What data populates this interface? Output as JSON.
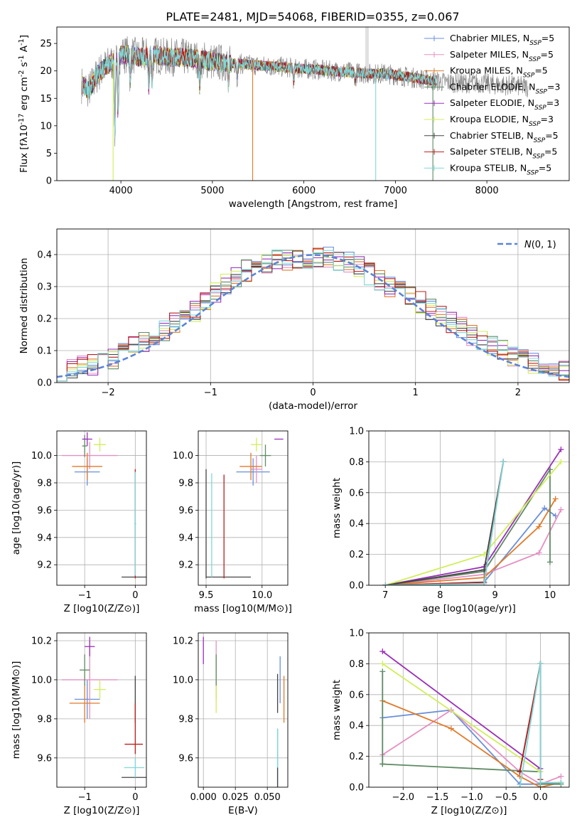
{
  "figure": {
    "title": "PLATE=2481, MJD=54068, FIBERID=0355, z=0.067"
  },
  "colors": {
    "chabrier_miles": "#6a8fd8",
    "salpeter_miles": "#e58fc2",
    "kroupa_miles": "#e07a2a",
    "chabrier_elodie": "#5f8a64",
    "salpeter_elodie": "#9b30b8",
    "kroupa_elodie": "#d0ee5a",
    "chabrier_stelib": "#444444",
    "salpeter_stelib": "#b8201e",
    "kroupa_stelib": "#7fd8d8",
    "normal": "#5b84d6",
    "grid": "#b0b0b0"
  },
  "chart_data": [
    {
      "id": "spectrum",
      "type": "line",
      "xlabel": "wavelength [Angstrom, rest frame]",
      "ylabel": "Flux [f_λ10^-17 erg cm^-2 s^-1 A^-1]",
      "xlim": [
        3300,
        8900
      ],
      "ylim": [
        0,
        28
      ],
      "xticks": [
        4000,
        5000,
        6000,
        7000,
        8000
      ],
      "yticks": [
        0,
        5,
        10,
        15,
        20,
        25
      ],
      "grid": false,
      "legend_position": "top-right",
      "legend": [
        {
          "model": "Chabrier MILES",
          "sub": "SSP",
          "n": "5",
          "color": "#6a8fd8"
        },
        {
          "model": "Salpeter MILES",
          "sub": "SSP",
          "n": "5",
          "color": "#e58fc2"
        },
        {
          "model": "Kroupa MILES",
          "sub": "SSP",
          "n": "5",
          "color": "#e07a2a"
        },
        {
          "model": "Chabrier ELODIE",
          "sub": "SSP",
          "n": "3",
          "color": "#5f8a64"
        },
        {
          "model": "Salpeter ELODIE",
          "sub": "SSP",
          "n": "3",
          "color": "#9b30b8"
        },
        {
          "model": "Kroupa ELODIE",
          "sub": "SSP",
          "n": "3",
          "color": "#d0ee5a"
        },
        {
          "model": "Chabrier STELIB",
          "sub": "SSP",
          "n": "5",
          "color": "#444444"
        },
        {
          "model": "Salpeter STELIB",
          "sub": "SSP",
          "n": "5",
          "color": "#b8201e"
        },
        {
          "model": "Kroupa STELIB",
          "sub": "SSP",
          "n": "5",
          "color": "#7fd8d8"
        }
      ],
      "continuum": {
        "x": [
          3570,
          3650,
          3750,
          3850,
          3950,
          4000,
          4100,
          4200,
          4350,
          4500,
          4700,
          4900,
          5100,
          5300,
          5500,
          5700,
          5900,
          6100,
          6300,
          6500,
          6700,
          6900,
          7100,
          7300,
          7500,
          7700,
          7900,
          8100,
          8300,
          8450
        ],
        "y": [
          17.5,
          16.5,
          19.5,
          21.0,
          22.0,
          23.0,
          23.0,
          22.5,
          23.0,
          22.5,
          22.5,
          22.0,
          21.5,
          21.3,
          21.0,
          20.8,
          20.5,
          20.3,
          20.0,
          19.8,
          19.5,
          19.5,
          19.0,
          18.5,
          18.0,
          17.8,
          17.8,
          17.5,
          17.3,
          17.0
        ]
      },
      "absorption_lines": [
        {
          "x": 3934,
          "depth": 0.6
        },
        {
          "x": 3969,
          "depth": 0.5
        },
        {
          "x": 4102,
          "depth": 0.2
        },
        {
          "x": 4305,
          "depth": 0.25
        },
        {
          "x": 4341,
          "depth": 0.2
        },
        {
          "x": 4861,
          "depth": 0.2
        },
        {
          "x": 5175,
          "depth": 0.18
        },
        {
          "x": 5270,
          "depth": 0.12
        },
        {
          "x": 5890,
          "depth": 0.12
        },
        {
          "x": 6563,
          "depth": 0.08
        }
      ],
      "spikes": [
        {
          "x": 3915,
          "y": 0
        },
        {
          "x": 5440,
          "y": 0
        },
        {
          "x": 6785,
          "y": 0
        },
        {
          "x": 7410,
          "y": 0
        },
        {
          "x": 6680,
          "y": 28
        },
        {
          "x": 6700,
          "y": 28
        }
      ]
    },
    {
      "id": "residuals",
      "type": "histogram",
      "xlabel": "(data-model)/error",
      "ylabel": "Normed distribution",
      "xlim": [
        -2.5,
        2.5
      ],
      "ylim": [
        0,
        0.48
      ],
      "xticks": [
        -2,
        -1,
        0,
        1,
        2
      ],
      "yticks": [
        0.0,
        0.1,
        0.2,
        0.3,
        0.4
      ],
      "grid": true,
      "legend_position": "top-right",
      "legend_label": "N(0,1)",
      "bins": [
        -2.5,
        -2.4,
        -2.3,
        -2.2,
        -2.1,
        -2.0,
        -1.9,
        -1.8,
        -1.7,
        -1.6,
        -1.5,
        -1.4,
        -1.3,
        -1.2,
        -1.1,
        -1.0,
        -0.9,
        -0.8,
        -0.7,
        -0.6,
        -0.5,
        -0.4,
        -0.3,
        -0.2,
        -0.1,
        0.0,
        0.1,
        0.2,
        0.3,
        0.4,
        0.5,
        0.6,
        0.7,
        0.8,
        0.9,
        1.0,
        1.1,
        1.2,
        1.3,
        1.4,
        1.5,
        1.6,
        1.7,
        1.8,
        1.9,
        2.0,
        2.1,
        2.2,
        2.3,
        2.4,
        2.5
      ],
      "envelope_mean": [
        0.04,
        0.045,
        0.05,
        0.055,
        0.06,
        0.075,
        0.09,
        0.11,
        0.125,
        0.145,
        0.165,
        0.185,
        0.2,
        0.225,
        0.255,
        0.28,
        0.31,
        0.33,
        0.35,
        0.36,
        0.375,
        0.38,
        0.385,
        0.39,
        0.39,
        0.39,
        0.39,
        0.385,
        0.375,
        0.36,
        0.34,
        0.32,
        0.3,
        0.285,
        0.27,
        0.25,
        0.23,
        0.21,
        0.19,
        0.17,
        0.15,
        0.13,
        0.115,
        0.1,
        0.085,
        0.07,
        0.06,
        0.05,
        0.045,
        0.04
      ],
      "normal": {
        "mu": 0,
        "sigma": 1
      },
      "series_colors": [
        "#6a8fd8",
        "#e58fc2",
        "#e07a2a",
        "#5f8a64",
        "#9b30b8",
        "#d0ee5a",
        "#444444",
        "#b8201e",
        "#7fd8d8"
      ]
    },
    {
      "id": "z-age",
      "type": "errorbar",
      "xlabel": "Z [log10(Z/Z⊙)]",
      "ylabel": "age [log10(age/yr)]",
      "xlim": [
        -1.55,
        0.22
      ],
      "ylim": [
        9.05,
        10.18
      ],
      "xticks": [
        -1,
        0
      ],
      "yticks": [
        9.2,
        9.4,
        9.6,
        9.8,
        10.0
      ],
      "grid": true,
      "points": [
        {
          "x": -0.95,
          "xerr": 0.25,
          "y": 9.88,
          "yerr": 0.1,
          "c": "#6a8fd8"
        },
        {
          "x": -0.9,
          "xerr": 0.55,
          "y": 10.0,
          "yerr": 0.1,
          "c": "#e58fc2"
        },
        {
          "x": -0.95,
          "xerr": 0.3,
          "y": 9.92,
          "yerr": 0.1,
          "c": "#e07a2a"
        },
        {
          "x": -1.0,
          "xerr": 0.05,
          "y": 10.07,
          "yerr": 0.08,
          "c": "#5f8a64"
        },
        {
          "x": -0.95,
          "xerr": 0.1,
          "y": 10.12,
          "yerr": 0.05,
          "c": "#9b30b8"
        },
        {
          "x": -0.7,
          "xerr": 0.12,
          "y": 10.08,
          "yerr": 0.05,
          "c": "#d0ee5a"
        },
        {
          "x": -0.02,
          "xerr": 0.25,
          "y": 9.11,
          "yerr": 0.0,
          "c": "#444444"
        },
        {
          "x": 0.0,
          "xerr": 0.0,
          "y": 9.5,
          "yerr": 0.4,
          "c": "#b8201e"
        },
        {
          "x": 0.0,
          "xerr": 0.02,
          "y": 9.5,
          "yerr": 0.38,
          "c": "#7fd8d8"
        }
      ]
    },
    {
      "id": "mass-age",
      "type": "errorbar",
      "xlabel": "mass [log10(M/M⊙)]",
      "ylabel": "",
      "xlim": [
        9.43,
        10.23
      ],
      "ylim": [
        9.05,
        10.18
      ],
      "xticks": [
        9.5,
        10.0
      ],
      "yticks": [
        9.2,
        9.4,
        9.6,
        9.8,
        10.0
      ],
      "grid": true,
      "points": [
        {
          "x": 9.92,
          "xerr": 0.15,
          "y": 9.88,
          "yerr": 0.1,
          "c": "#6a8fd8"
        },
        {
          "x": 9.95,
          "xerr": 0.05,
          "y": 9.9,
          "yerr": 0.1,
          "c": "#e58fc2"
        },
        {
          "x": 9.9,
          "xerr": 0.1,
          "y": 9.92,
          "yerr": 0.1,
          "c": "#e07a2a"
        },
        {
          "x": 10.03,
          "xerr": 0.05,
          "y": 10.0,
          "yerr": 0.08,
          "c": "#5f8a64"
        },
        {
          "x": 10.15,
          "xerr": 0.04,
          "y": 10.12,
          "yerr": 0.0,
          "c": "#9b30b8"
        },
        {
          "x": 9.95,
          "xerr": 0.05,
          "y": 10.08,
          "yerr": 0.05,
          "c": "#d0ee5a"
        },
        {
          "x": 9.7,
          "xerr": 0.2,
          "y": 9.11,
          "yerr": 0.0,
          "c": "#444444"
        },
        {
          "x": 9.5,
          "xerr": 0.0,
          "y": 9.5,
          "yerr": 0.4,
          "c": "#444444"
        },
        {
          "x": 9.66,
          "xerr": 0.0,
          "y": 9.48,
          "yerr": 0.38,
          "c": "#b8201e"
        },
        {
          "x": 9.55,
          "xerr": 0.0,
          "y": 9.49,
          "yerr": 0.38,
          "c": "#7fd8d8"
        }
      ]
    },
    {
      "id": "age-weight",
      "type": "line",
      "xlabel": "age [log10(age/yr)]",
      "ylabel": "mass weight",
      "xlim": [
        6.7,
        10.35
      ],
      "ylim": [
        0,
        1.0
      ],
      "xticks": [
        7,
        8,
        9,
        10
      ],
      "yticks": [
        0.0,
        0.2,
        0.4,
        0.6,
        0.8,
        1.0
      ],
      "grid": true,
      "series": [
        {
          "c": "#6a8fd8",
          "x": [
            7.0,
            8.8,
            9.9,
            10.1
          ],
          "y": [
            0.0,
            0.02,
            0.5,
            0.45
          ]
        },
        {
          "c": "#e58fc2",
          "x": [
            7.0,
            8.8,
            9.8,
            10.2
          ],
          "y": [
            0.0,
            0.07,
            0.21,
            0.49
          ]
        },
        {
          "c": "#e07a2a",
          "x": [
            7.0,
            8.8,
            9.8,
            10.1
          ],
          "y": [
            0.0,
            0.05,
            0.38,
            0.56
          ]
        },
        {
          "c": "#5f8a64",
          "x": [
            7.0,
            8.8,
            10.0,
            10.0
          ],
          "y": [
            0.0,
            0.09,
            0.75,
            0.15
          ]
        },
        {
          "c": "#9b30b8",
          "x": [
            7.0,
            8.8,
            10.2
          ],
          "y": [
            0.0,
            0.12,
            0.88
          ]
        },
        {
          "c": "#d0ee5a",
          "x": [
            7.0,
            8.8,
            10.2
          ],
          "y": [
            0.0,
            0.2,
            0.8
          ]
        },
        {
          "c": "#444444",
          "x": [
            7.0,
            8.8,
            9.15
          ],
          "y": [
            0.0,
            0.1,
            0.8
          ]
        },
        {
          "c": "#b8201e",
          "x": [
            7.0,
            8.8,
            9.15
          ],
          "y": [
            0.0,
            0.02,
            0.8
          ]
        },
        {
          "c": "#7fd8d8",
          "x": [
            7.0,
            8.8,
            9.15
          ],
          "y": [
            0.0,
            0.01,
            0.8
          ]
        }
      ]
    },
    {
      "id": "z-mass",
      "type": "errorbar",
      "xlabel": "Z [log10(Z/Z⊙)]",
      "ylabel": "mass [log10(M/M⊙)]",
      "xlim": [
        -1.55,
        0.22
      ],
      "ylim": [
        9.45,
        10.24
      ],
      "xticks": [
        -1,
        0
      ],
      "yticks": [
        9.6,
        9.8,
        10.0,
        10.2
      ],
      "grid": true,
      "points": [
        {
          "x": -0.95,
          "xerr": 0.25,
          "y": 9.9,
          "yerr": 0.1,
          "c": "#6a8fd8"
        },
        {
          "x": -0.9,
          "xerr": 0.55,
          "y": 10.0,
          "yerr": 0.2,
          "c": "#e58fc2"
        },
        {
          "x": -1.0,
          "xerr": 0.3,
          "y": 9.88,
          "yerr": 0.1,
          "c": "#e07a2a"
        },
        {
          "x": -1.0,
          "xerr": 0.1,
          "y": 10.05,
          "yerr": 0.08,
          "c": "#5f8a64"
        },
        {
          "x": -0.9,
          "xerr": 0.1,
          "y": 10.17,
          "yerr": 0.05,
          "c": "#9b30b8"
        },
        {
          "x": -0.7,
          "xerr": 0.12,
          "y": 9.95,
          "yerr": 0.05,
          "c": "#d0ee5a"
        },
        {
          "x": -0.02,
          "xerr": 0.25,
          "y": 9.5,
          "yerr": 0.0,
          "c": "#444444"
        },
        {
          "x": 0.0,
          "xerr": 0.0,
          "y": 9.9,
          "yerr": 0.12,
          "c": "#444444"
        },
        {
          "x": -0.03,
          "xerr": 0.18,
          "y": 9.67,
          "yerr": 0.0,
          "c": "#b8201e"
        },
        {
          "x": 0.0,
          "xerr": 0.0,
          "y": 9.75,
          "yerr": 0.13,
          "c": "#b8201e"
        },
        {
          "x": -0.02,
          "xerr": 0.2,
          "y": 9.55,
          "yerr": 0.0,
          "c": "#7fd8d8"
        },
        {
          "x": 0.0,
          "xerr": 0.0,
          "y": 9.55,
          "yerr": 0.05,
          "c": "#7fd8d8"
        }
      ]
    },
    {
      "id": "ebv-mass",
      "type": "errorbar",
      "xlabel": "E(B-V)",
      "ylabel": "",
      "xlim": [
        -0.004,
        0.066
      ],
      "ylim": [
        9.45,
        10.24
      ],
      "xticks": [
        0.0,
        0.025,
        0.05
      ],
      "yticks": [
        9.6,
        9.8,
        10.0,
        10.2
      ],
      "grid": true,
      "points": [
        {
          "x": 0.0,
          "xerr": 0.0,
          "y": 10.15,
          "yerr": 0.07,
          "c": "#9b30b8"
        },
        {
          "x": 0.01,
          "xerr": 0.0,
          "y": 10.05,
          "yerr": 0.15,
          "c": "#e58fc2"
        },
        {
          "x": 0.01,
          "xerr": 0.0,
          "y": 9.93,
          "yerr": 0.1,
          "c": "#d0ee5a"
        },
        {
          "x": 0.01,
          "xerr": 0.0,
          "y": 10.05,
          "yerr": 0.08,
          "c": "#5f8a64"
        },
        {
          "x": 0.058,
          "xerr": 0.0,
          "y": 9.6,
          "yerr": 0.15,
          "c": "#6a8fd8"
        },
        {
          "x": 0.06,
          "xerr": 0.0,
          "y": 10.0,
          "yerr": 0.12,
          "c": "#6a8fd8"
        },
        {
          "x": 0.058,
          "xerr": 0.0,
          "y": 9.5,
          "yerr": 0.05,
          "c": "#444444"
        },
        {
          "x": 0.058,
          "xerr": 0.0,
          "y": 9.93,
          "yerr": 0.1,
          "c": "#444444"
        },
        {
          "x": 0.058,
          "xerr": 0.0,
          "y": 9.65,
          "yerr": 0.1,
          "c": "#7fd8d8"
        },
        {
          "x": 0.063,
          "xerr": 0.0,
          "y": 9.9,
          "yerr": 0.12,
          "c": "#e07a2a"
        }
      ]
    },
    {
      "id": "z-weight",
      "type": "line",
      "xlabel": "Z [log10(Z/Z⊙)]",
      "ylabel": "mass weight",
      "xlim": [
        -2.5,
        0.42
      ],
      "ylim": [
        0,
        1.0
      ],
      "xticks": [
        -2.0,
        -1.5,
        -1.0,
        -0.5,
        0.0
      ],
      "yticks": [
        0.0,
        0.2,
        0.4,
        0.6,
        0.8,
        1.0
      ],
      "grid": true,
      "series": [
        {
          "c": "#6a8fd8",
          "x": [
            -2.3,
            -1.3,
            -0.3,
            0.0,
            0.3
          ],
          "y": [
            0.45,
            0.5,
            0.02,
            0.02,
            0.03
          ]
        },
        {
          "c": "#e58fc2",
          "x": [
            -2.3,
            -1.3,
            -0.3,
            0.0,
            0.3
          ],
          "y": [
            0.21,
            0.5,
            0.1,
            0.02,
            0.07
          ]
        },
        {
          "c": "#e07a2a",
          "x": [
            -2.3,
            -1.3,
            -0.3,
            0.0,
            0.3
          ],
          "y": [
            0.56,
            0.38,
            0.07,
            0.0,
            0.03
          ]
        },
        {
          "c": "#5f8a64",
          "x": [
            -2.3,
            -2.3,
            -2.3,
            0.0,
            0.0,
            0.3
          ],
          "y": [
            0.75,
            0.15,
            0.15,
            0.1,
            0.02,
            0.02
          ]
        },
        {
          "c": "#9b30b8",
          "x": [
            -2.3,
            0.0
          ],
          "y": [
            0.88,
            0.12
          ]
        },
        {
          "c": "#d0ee5a",
          "x": [
            -2.3,
            0.0
          ],
          "y": [
            0.8,
            0.1
          ]
        },
        {
          "c": "#444444",
          "x": [
            -0.3,
            0.0,
            0.0
          ],
          "y": [
            0.1,
            0.8,
            0.05
          ]
        },
        {
          "c": "#b8201e",
          "x": [
            -0.3,
            0.0,
            0.0
          ],
          "y": [
            0.1,
            0.8,
            0.05
          ]
        },
        {
          "c": "#7fd8d8",
          "x": [
            -0.3,
            0.0,
            0.0,
            0.3
          ],
          "y": [
            0.0,
            0.8,
            0.03,
            0.03
          ]
        }
      ]
    }
  ]
}
